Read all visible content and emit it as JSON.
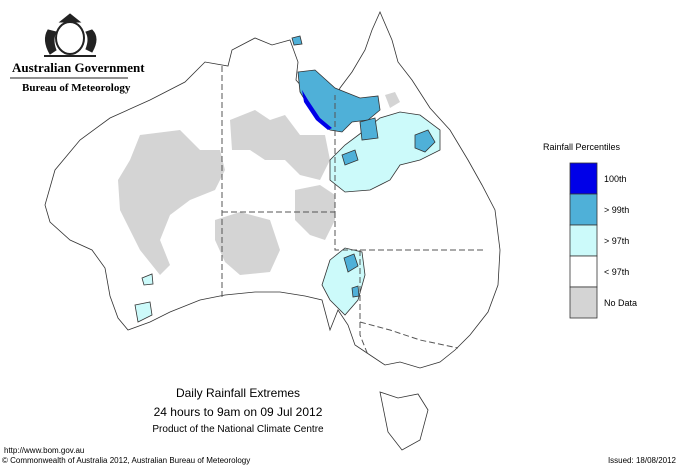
{
  "header": {
    "title": "Australian Government",
    "subtitle": "Bureau of Meteorology"
  },
  "legend": {
    "title": "Rainfall Percentiles",
    "items": [
      {
        "label": "100th",
        "color": "#0000e8"
      },
      {
        "label": "> 99th",
        "color": "#4fb0d8"
      },
      {
        "label": "> 97th",
        "color": "#ccfafa"
      },
      {
        "label": "< 97th",
        "color": "#ffffff"
      },
      {
        "label": "No Data",
        "color": "#d4d4d4"
      }
    ]
  },
  "caption": {
    "lines": [
      "Daily Rainfall Extremes",
      "24 hours to 9am on 09 Jul 2012",
      "Product of the National Climate Centre"
    ]
  },
  "footer": {
    "url": "http://www.bom.gov.au",
    "copyright": "© Commonwealth of Australia 2012, Australian Bureau of Meteorology",
    "issued": "Issued: 18/08/2012"
  }
}
